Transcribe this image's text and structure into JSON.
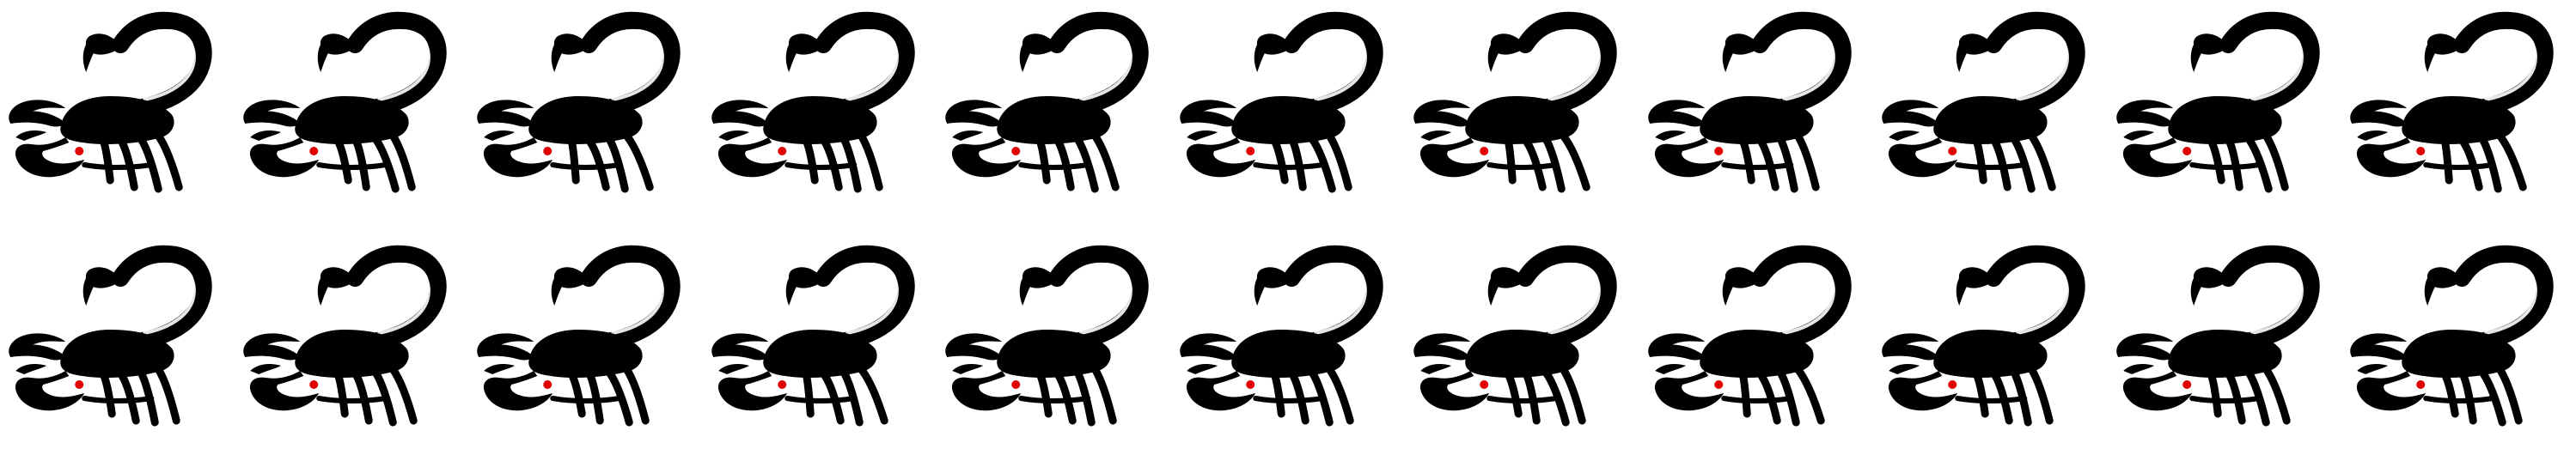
{
  "sprite_sheet": {
    "subject": "scorpion",
    "rows": 2,
    "columns": 11,
    "frames_per_row": 11,
    "total_frames": 22,
    "colors": {
      "background": "#ffffff",
      "body": "#000000",
      "eye": "#e00000"
    },
    "animation": "leg-walk-cycle",
    "frames": [
      {
        "row": 1,
        "col": 1,
        "legs": "a"
      },
      {
        "row": 1,
        "col": 2,
        "legs": "b"
      },
      {
        "row": 1,
        "col": 3,
        "legs": "c"
      },
      {
        "row": 1,
        "col": 4,
        "legs": "d"
      },
      {
        "row": 1,
        "col": 5,
        "legs": "a"
      },
      {
        "row": 1,
        "col": 6,
        "legs": "b"
      },
      {
        "row": 1,
        "col": 7,
        "legs": "c"
      },
      {
        "row": 1,
        "col": 8,
        "legs": "d"
      },
      {
        "row": 1,
        "col": 9,
        "legs": "a"
      },
      {
        "row": 1,
        "col": 10,
        "legs": "b"
      },
      {
        "row": 1,
        "col": 11,
        "legs": "c"
      },
      {
        "row": 2,
        "col": 1,
        "legs": "d"
      },
      {
        "row": 2,
        "col": 2,
        "legs": "a"
      },
      {
        "row": 2,
        "col": 3,
        "legs": "b"
      },
      {
        "row": 2,
        "col": 4,
        "legs": "c"
      },
      {
        "row": 2,
        "col": 5,
        "legs": "d"
      },
      {
        "row": 2,
        "col": 6,
        "legs": "a"
      },
      {
        "row": 2,
        "col": 7,
        "legs": "b"
      },
      {
        "row": 2,
        "col": 8,
        "legs": "c"
      },
      {
        "row": 2,
        "col": 9,
        "legs": "d"
      },
      {
        "row": 2,
        "col": 10,
        "legs": "a"
      },
      {
        "row": 2,
        "col": 11,
        "legs": "b"
      }
    ]
  }
}
